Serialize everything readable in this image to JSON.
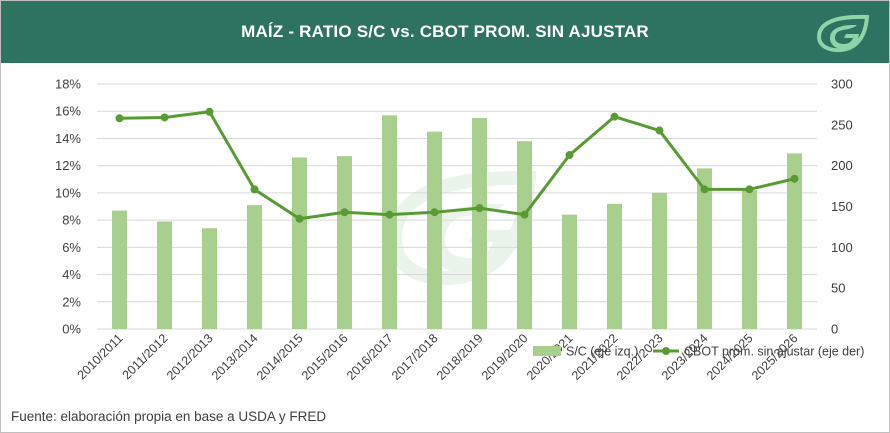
{
  "header": {
    "title": "MAÍZ - RATIO S/C vs. CBOT PROM.  SIN AJUSTAR",
    "logo_icon": "leaf-g-logo-icon"
  },
  "footer": {
    "source": "Fuente: elaboración propia en base a USDA y FRED"
  },
  "colors": {
    "header_bg": "#2e7262",
    "bar": "#a9cf8f",
    "line": "#5a9a35",
    "text": "#404040"
  },
  "chart_data": {
    "type": "bar",
    "title": "MAÍZ - RATIO S/C vs. CBOT PROM.  SIN AJUSTAR",
    "categories": [
      "2010/2011",
      "2011/2012",
      "2012/2013",
      "2013/2014",
      "2014/2015",
      "2015/2016",
      "2016/2017",
      "2017/2018",
      "2018/2019",
      "2019/2020",
      "2020/2021",
      "2021/2022",
      "2022/2023",
      "2023/2024",
      "2024/2025",
      "2025/2026"
    ],
    "y_left": {
      "min": 0,
      "max": 18,
      "step": 2,
      "tick_labels": [
        "0%",
        "2%",
        "4%",
        "6%",
        "8%",
        "10%",
        "12%",
        "14%",
        "16%",
        "18%"
      ]
    },
    "y_right": {
      "min": 0,
      "max": 300,
      "step": 50,
      "tick_labels": [
        "0",
        "50",
        "100",
        "150",
        "200",
        "250",
        "300"
      ]
    },
    "grid": true,
    "legend_position": "bottom-right",
    "series": [
      {
        "name": "S/C (eje izq.)",
        "type": "bar",
        "axis": "left",
        "values": [
          8.7,
          7.9,
          7.4,
          9.1,
          12.6,
          12.7,
          15.7,
          14.5,
          15.5,
          13.8,
          8.4,
          9.2,
          10.0,
          11.8,
          10.2,
          12.9
        ]
      },
      {
        "name": "CBOT prom. sin ajustar (eje der)",
        "type": "line",
        "axis": "right",
        "values": [
          258,
          259,
          266,
          171,
          135,
          143,
          140,
          143,
          148,
          140,
          213,
          260,
          243,
          171,
          171,
          184
        ]
      }
    ]
  }
}
